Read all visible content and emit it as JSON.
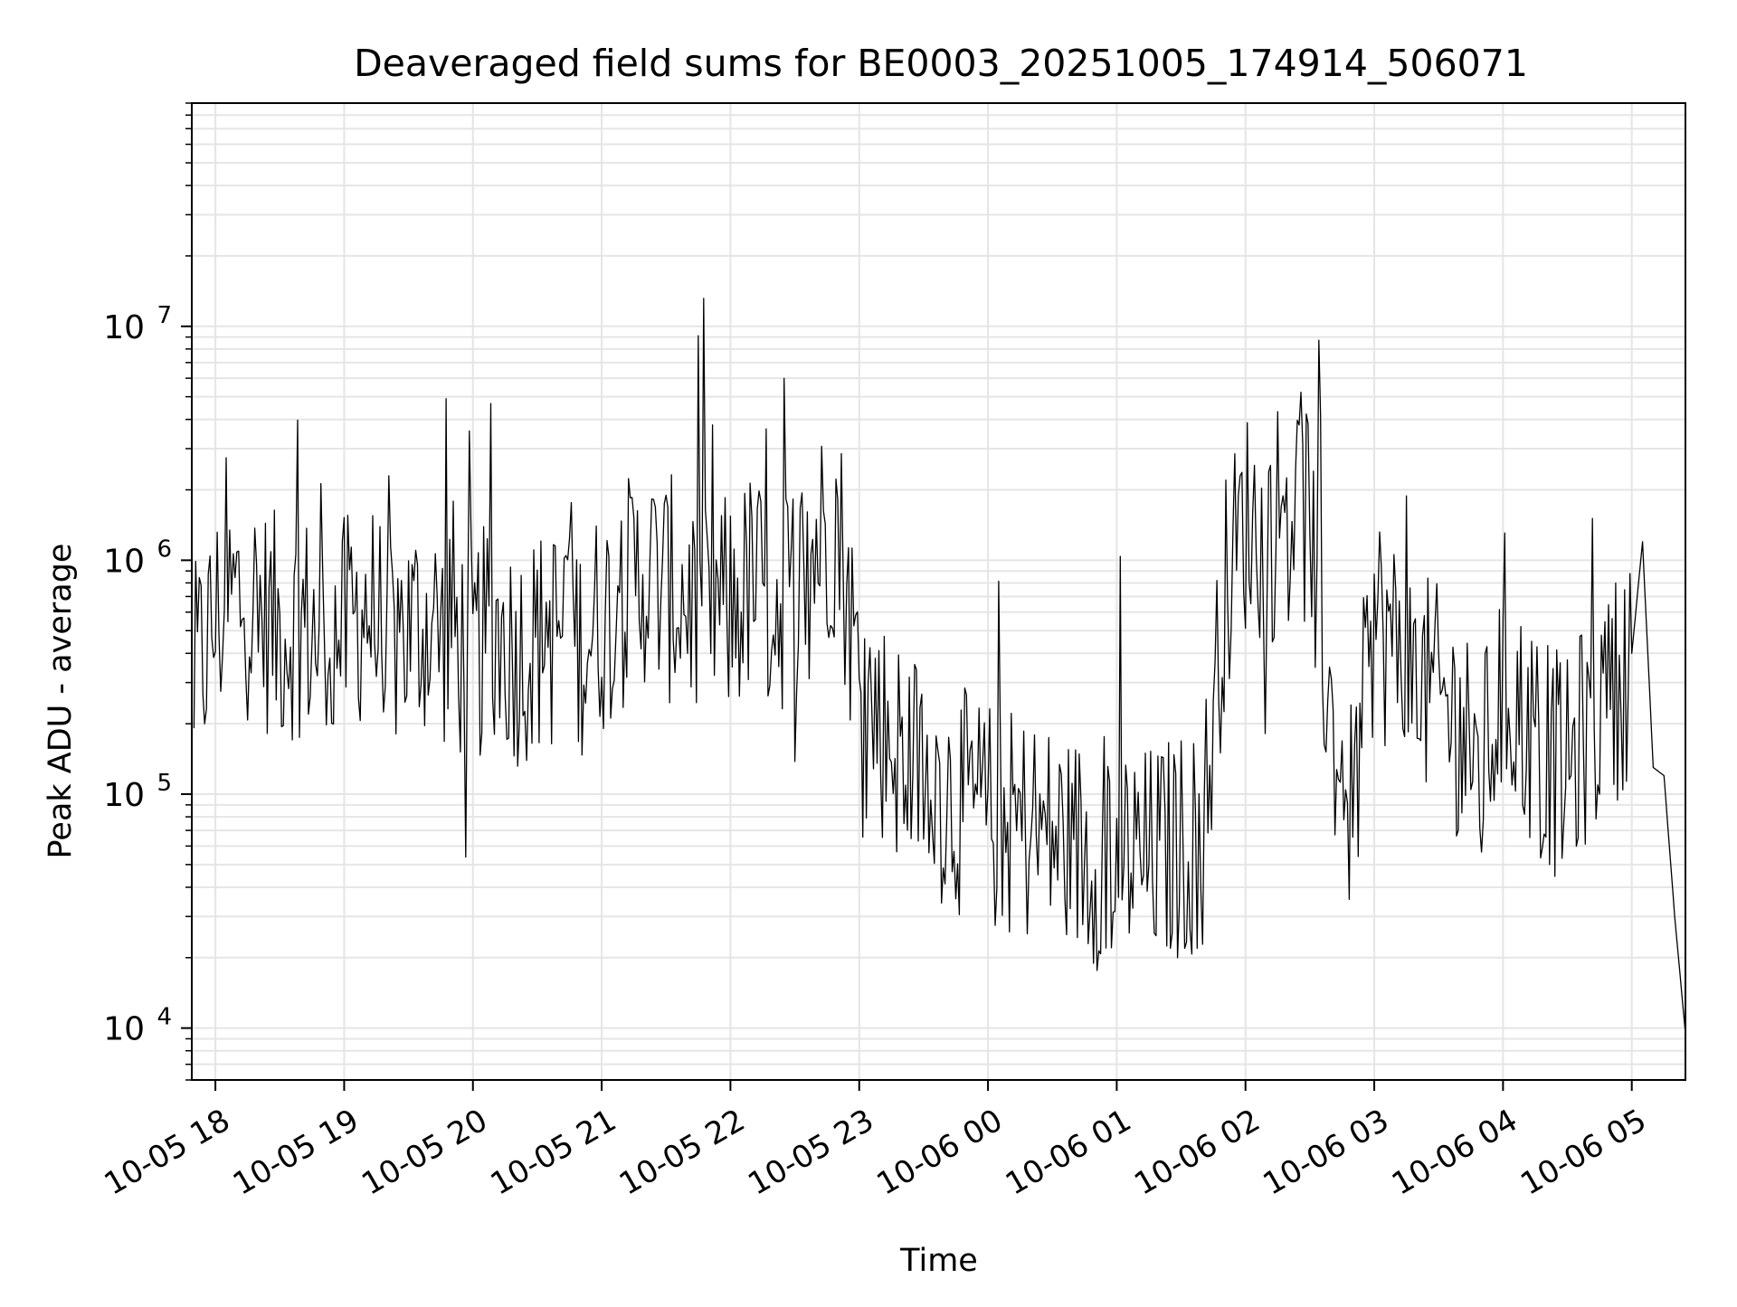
{
  "chart_data": {
    "type": "line",
    "title": "Deaveraged field sums for BE0003_20251005_174914_506071",
    "xlabel": "Time",
    "ylabel": "Peak ADU - average",
    "yscale": "log",
    "ylim": [
      6000,
      90000000
    ],
    "xlim": [
      "2025-10-05 17:49",
      "2025-10-06 05:25"
    ],
    "grid": true,
    "line_color": "#000000",
    "grid_color": "#e5e5e5",
    "x_ticks": [
      {
        "t": "2025-10-05 18:00",
        "label": "10-05 18"
      },
      {
        "t": "2025-10-05 19:00",
        "label": "10-05 19"
      },
      {
        "t": "2025-10-05 20:00",
        "label": "10-05 20"
      },
      {
        "t": "2025-10-05 21:00",
        "label": "10-05 21"
      },
      {
        "t": "2025-10-05 22:00",
        "label": "10-05 22"
      },
      {
        "t": "2025-10-05 23:00",
        "label": "10-05 23"
      },
      {
        "t": "2025-10-06 00:00",
        "label": "10-06 00"
      },
      {
        "t": "2025-10-06 01:00",
        "label": "10-06 01"
      },
      {
        "t": "2025-10-06 02:00",
        "label": "10-06 02"
      },
      {
        "t": "2025-10-06 03:00",
        "label": "10-06 03"
      },
      {
        "t": "2025-10-06 04:00",
        "label": "10-06 04"
      },
      {
        "t": "2025-10-06 05:00",
        "label": "10-06 05"
      }
    ],
    "y_ticks": [
      {
        "value": 10000,
        "base": "10",
        "exp": "4"
      },
      {
        "value": 100000,
        "base": "10",
        "exp": "5"
      },
      {
        "value": 1000000,
        "base": "10",
        "exp": "6"
      },
      {
        "value": 10000000,
        "base": "10",
        "exp": "7"
      }
    ],
    "series": [
      {
        "x": [
          "2025-10-05 17:50",
          "2025-10-05 18:00",
          "2025-10-05 18:10",
          "2025-10-05 18:20",
          "2025-10-05 18:30",
          "2025-10-05 18:40",
          "2025-10-05 18:50",
          "2025-10-05 19:00",
          "2025-10-05 19:10",
          "2025-10-05 19:20",
          "2025-10-05 19:30",
          "2025-10-05 19:40",
          "2025-10-05 19:50",
          "2025-10-05 20:00",
          "2025-10-05 20:10",
          "2025-10-05 20:20",
          "2025-10-05 20:30",
          "2025-10-05 20:40",
          "2025-10-05 20:50",
          "2025-10-05 21:00",
          "2025-10-05 21:10",
          "2025-10-05 21:20",
          "2025-10-05 21:30",
          "2025-10-05 21:40",
          "2025-10-05 21:50",
          "2025-10-05 22:00",
          "2025-10-05 22:10",
          "2025-10-05 22:20",
          "2025-10-05 22:30",
          "2025-10-05 22:40",
          "2025-10-05 22:50",
          "2025-10-05 23:00",
          "2025-10-05 23:10",
          "2025-10-05 23:20",
          "2025-10-05 23:30",
          "2025-10-05 23:40",
          "2025-10-05 23:50",
          "2025-10-06 00:00",
          "2025-10-06 00:10",
          "2025-10-06 00:20",
          "2025-10-06 00:30",
          "2025-10-06 00:40",
          "2025-10-06 00:50",
          "2025-10-06 01:00",
          "2025-10-06 01:10",
          "2025-10-06 01:20",
          "2025-10-06 01:30",
          "2025-10-06 01:40",
          "2025-10-06 01:50",
          "2025-10-06 02:00",
          "2025-10-06 02:10",
          "2025-10-06 02:20",
          "2025-10-06 02:30",
          "2025-10-06 02:40",
          "2025-10-06 02:50",
          "2025-10-06 03:00",
          "2025-10-06 03:10",
          "2025-10-06 03:20",
          "2025-10-06 03:30",
          "2025-10-06 03:40",
          "2025-10-06 03:50",
          "2025-10-06 04:00",
          "2025-10-06 04:10",
          "2025-10-06 04:20",
          "2025-10-06 04:30",
          "2025-10-06 04:40",
          "2025-10-06 04:50",
          "2025-10-06 05:00",
          "2025-10-06 05:05",
          "2025-10-06 05:10",
          "2025-10-06 05:15",
          "2025-10-06 05:20",
          "2025-10-06 05:25"
        ],
        "y": [
          300000,
          550000,
          700000,
          600000,
          500000,
          550000,
          450000,
          500000,
          650000,
          450000,
          500000,
          550000,
          450000,
          400000,
          500000,
          400000,
          450000,
          500000,
          450000,
          550000,
          700000,
          900000,
          750000,
          700000,
          650000,
          600000,
          800000,
          650000,
          750000,
          1200000,
          1500000,
          300000,
          200000,
          150000,
          120000,
          100000,
          90000,
          80000,
          75000,
          70000,
          65000,
          60000,
          55000,
          60000,
          50000,
          55000,
          60000,
          65000,
          700000,
          1500000,
          1200000,
          2000000,
          1500000,
          200000,
          80000,
          600000,
          400000,
          300000,
          250000,
          200000,
          120000,
          300000,
          200000,
          150000,
          120000,
          200000,
          250000,
          400000,
          1200000,
          130000,
          120000,
          30000,
          9500
        ]
      }
    ]
  }
}
